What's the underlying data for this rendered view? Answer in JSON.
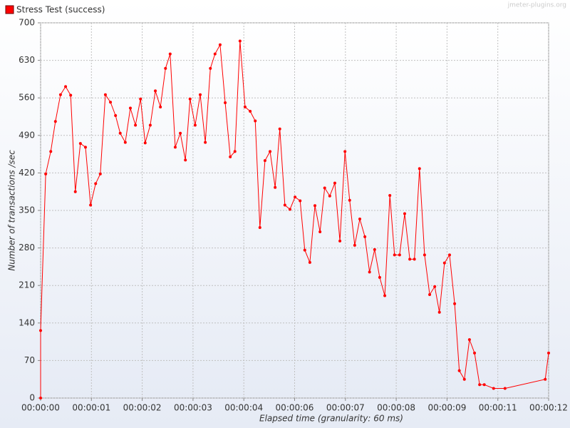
{
  "chart_data": {
    "type": "line",
    "watermark": "jmeter-plugins.org",
    "xlabel": "Elapsed time (granularity: 60 ms)",
    "ylabel": "Number of transactions /sec",
    "legend": "top-left",
    "grid": true,
    "xlim": [
      0,
      12
    ],
    "xticks": [
      {
        "value": 0,
        "label": "00:00:00"
      },
      {
        "value": 1.2,
        "label": "00:00:01"
      },
      {
        "value": 2.4,
        "label": "00:00:02"
      },
      {
        "value": 3.6,
        "label": "00:00:03"
      },
      {
        "value": 4.8,
        "label": "00:00:04"
      },
      {
        "value": 6,
        "label": "00:00:06"
      },
      {
        "value": 7.2,
        "label": "00:00:07"
      },
      {
        "value": 8.4,
        "label": "00:00:08"
      },
      {
        "value": 9.6,
        "label": "00:00:09"
      },
      {
        "value": 10.8,
        "label": "00:00:11"
      },
      {
        "value": 12,
        "label": "00:00:12"
      }
    ],
    "ylim": [
      0,
      700
    ],
    "yticks": [
      0,
      70,
      140,
      210,
      280,
      350,
      420,
      490,
      560,
      630,
      700
    ],
    "x": [
      0,
      0,
      0.12,
      0.24,
      0.35,
      0.47,
      0.59,
      0.71,
      0.82,
      0.94,
      1.06,
      1.18,
      1.3,
      1.41,
      1.53,
      1.65,
      1.77,
      1.88,
      2.0,
      2.12,
      2.24,
      2.36,
      2.47,
      2.59,
      2.71,
      2.83,
      2.95,
      3.06,
      3.18,
      3.3,
      3.42,
      3.53,
      3.65,
      3.77,
      3.89,
      4.01,
      4.12,
      4.24,
      4.36,
      4.48,
      4.59,
      4.71,
      4.83,
      4.95,
      5.07,
      5.18,
      5.3,
      5.42,
      5.54,
      5.65,
      5.77,
      5.89,
      6.01,
      6.13,
      6.24,
      6.36,
      6.48,
      6.6,
      6.71,
      6.83,
      6.95,
      7.07,
      7.19,
      7.3,
      7.42,
      7.54,
      7.66,
      7.77,
      7.89,
      8.01,
      8.13,
      8.25,
      8.36,
      8.48,
      8.6,
      8.72,
      8.83,
      8.95,
      9.07,
      9.19,
      9.31,
      9.42,
      9.54,
      9.66,
      9.78,
      9.89,
      10.01,
      10.13,
      10.25,
      10.37,
      10.48,
      10.7,
      10.97,
      11.92,
      12.0
    ],
    "series": [
      {
        "name": "Stress Test (success)",
        "color": "#ff0000",
        "values": [
          0,
          126,
          418,
          460,
          516,
          566,
          581,
          565,
          385,
          475,
          468,
          360,
          400,
          418,
          566,
          552,
          527,
          494,
          477,
          541,
          509,
          558,
          476,
          509,
          573,
          543,
          615,
          642,
          468,
          494,
          444,
          558,
          509,
          566,
          477,
          615,
          642,
          659,
          551,
          450,
          460,
          666,
          543,
          535,
          517,
          318,
          443,
          460,
          393,
          502,
          360,
          352,
          375,
          368,
          276,
          253,
          359,
          310,
          392,
          377,
          401,
          293,
          460,
          369,
          285,
          334,
          301,
          235,
          277,
          225,
          191,
          378,
          267,
          267,
          344,
          259,
          259,
          428,
          267,
          193,
          208,
          160,
          252,
          267,
          176,
          51,
          35,
          109,
          84,
          25,
          25,
          18,
          18,
          35,
          84
        ]
      }
    ]
  }
}
